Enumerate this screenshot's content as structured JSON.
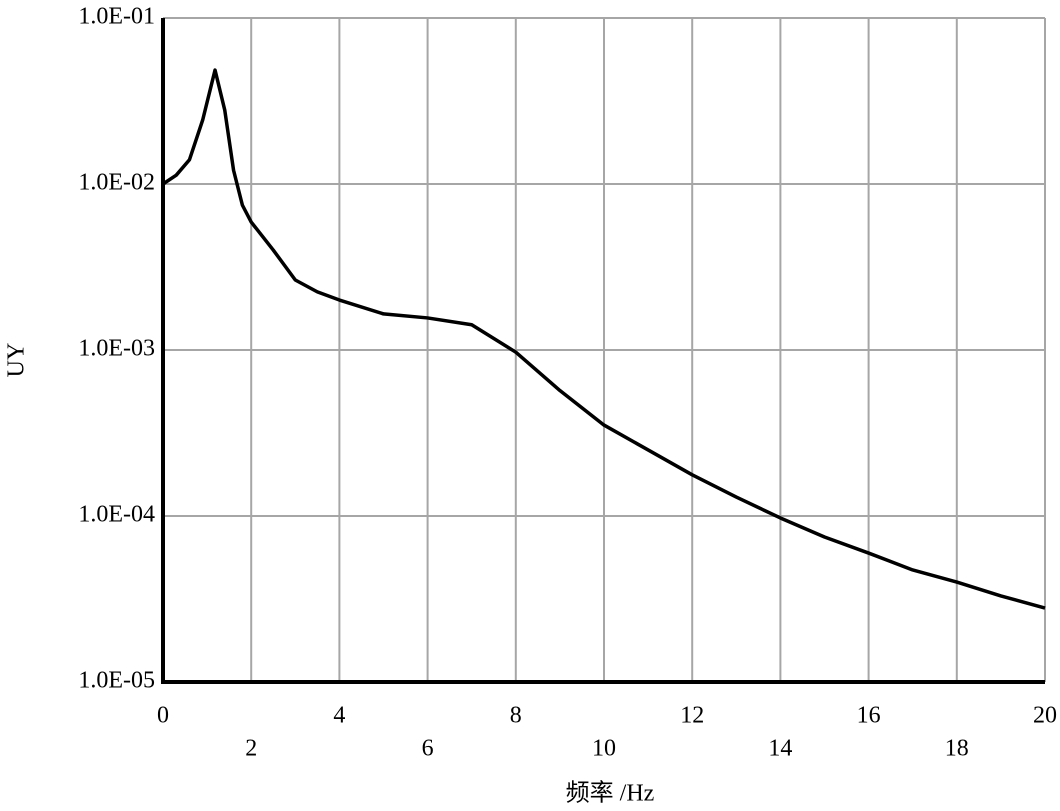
{
  "chart_data": {
    "type": "line",
    "x_label": "频率 /Hz",
    "y_label": "UY",
    "log_y": true,
    "grid": true,
    "x": [
      0,
      0.3,
      0.6,
      0.9,
      1.18,
      1.4,
      1.6,
      1.8,
      2,
      2.5,
      3,
      3.5,
      4,
      5,
      6,
      7,
      8,
      9,
      10,
      11,
      12,
      13,
      14,
      15,
      16,
      17,
      18,
      19,
      20
    ],
    "series": [
      {
        "color": "#000000",
        "values": [
          0.01,
          0.0113,
          0.014,
          0.0243,
          0.0486,
          0.0279,
          0.0121,
          0.00746,
          0.0059,
          0.004,
          0.00264,
          0.00224,
          0.002,
          0.00165,
          0.00156,
          0.00142,
          0.00097,
          0.00057,
          0.000353,
          0.00025,
          0.000177,
          0.00013,
          9.73e-05,
          7.47e-05,
          5.98e-05,
          4.73e-05,
          4e-05,
          3.3e-05,
          2.79e-05
        ]
      }
    ],
    "xlim": [
      0,
      20
    ],
    "xticks": [
      0,
      2,
      4,
      6,
      8,
      10,
      12,
      14,
      16,
      18,
      20
    ],
    "ylim": [
      1e-05,
      0.1
    ],
    "yticks": [
      {
        "value": 1e-05,
        "label": "1.0E-05"
      },
      {
        "value": 0.0001,
        "label": "1.0E-04"
      },
      {
        "value": 0.001,
        "label": "1.0E-03"
      },
      {
        "value": 0.01,
        "label": "1.0E-02"
      },
      {
        "value": 0.1,
        "label": "1.0E-01"
      }
    ]
  }
}
